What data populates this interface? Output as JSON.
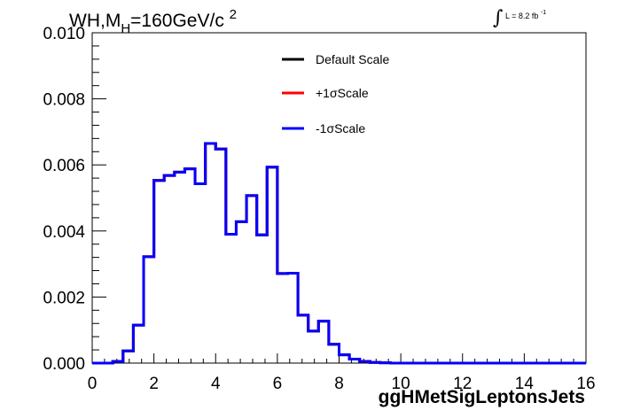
{
  "header": {
    "title_main": "WH,M",
    "title_sub": "H",
    "title_rest": "=160GeV/c",
    "title_sup": "2",
    "lumi_symbol": "∫",
    "lumi_text": "L = 8.2 fb",
    "lumi_sup": "-1"
  },
  "chart_data": {
    "type": "line",
    "xlabel": "ggHMetSigLeptonsJets",
    "ylabel": "",
    "xlim": [
      0,
      16
    ],
    "ylim": [
      0,
      0.01
    ],
    "x_ticks": [
      0,
      2,
      4,
      6,
      8,
      10,
      12,
      14,
      16
    ],
    "x_tick_labels": [
      "0",
      "2",
      "4",
      "6",
      "8",
      "10",
      "12",
      "14",
      "16"
    ],
    "y_ticks": [
      0.0,
      0.002,
      0.004,
      0.006,
      0.008,
      0.01
    ],
    "y_tick_labels": [
      "0.000",
      "0.002",
      "0.004",
      "0.006",
      "0.008",
      "0.010"
    ],
    "grid": false,
    "legend_position": "top-center",
    "bin_edges": [
      0,
      0.3333,
      0.6667,
      1.0,
      1.3333,
      1.6667,
      2.0,
      2.3333,
      2.6667,
      3.0,
      3.3333,
      3.6667,
      4.0,
      4.3333,
      4.6667,
      5.0,
      5.3333,
      5.6667,
      6.0,
      6.3333,
      6.6667,
      7.0,
      7.3333,
      7.6667,
      8.0,
      8.3333,
      8.6667,
      9.0,
      9.3333,
      9.6667,
      10.0,
      10.3333,
      10.6667,
      11.0,
      11.3333,
      11.6667,
      12.0,
      12.3333,
      12.6667,
      13.0,
      13.3333,
      13.6667,
      14.0,
      14.3333,
      14.6667,
      15.0,
      15.3333,
      15.6667,
      16.0
    ],
    "series": [
      {
        "name": "Default Scale",
        "color": "#000000",
        "values": [
          0.0,
          0.0,
          5e-05,
          0.00037,
          0.00115,
          0.00322,
          0.00553,
          0.00568,
          0.00578,
          0.00588,
          0.00543,
          0.00665,
          0.00648,
          0.0039,
          0.00428,
          0.00507,
          0.00388,
          0.00593,
          0.00271,
          0.00272,
          0.00145,
          0.00097,
          0.00127,
          0.00057,
          0.00025,
          0.00012,
          5e-05,
          2e-05,
          1e-05,
          0.0,
          0.0,
          0.0,
          0.0,
          0.0,
          0.0,
          0.0,
          0.0,
          0.0,
          0.0,
          0.0,
          0.0,
          0.0,
          0.0,
          0.0,
          0.0,
          0.0,
          0.0,
          0.0
        ]
      },
      {
        "name": "+1σScale",
        "color": "#ff0000",
        "values": [
          0.0,
          0.0,
          5e-05,
          0.00037,
          0.00115,
          0.00322,
          0.00553,
          0.00568,
          0.00578,
          0.00588,
          0.00543,
          0.00665,
          0.00648,
          0.0039,
          0.00428,
          0.00507,
          0.00388,
          0.00593,
          0.00271,
          0.00272,
          0.00145,
          0.00097,
          0.00127,
          0.00057,
          0.00025,
          0.00012,
          5e-05,
          2e-05,
          1e-05,
          0.0,
          0.0,
          0.0,
          0.0,
          0.0,
          0.0,
          0.0,
          0.0,
          0.0,
          0.0,
          0.0,
          0.0,
          0.0,
          0.0,
          0.0,
          0.0,
          0.0,
          0.0,
          0.0
        ]
      },
      {
        "name": "-1σScale",
        "color": "#0000ff",
        "values": [
          0.0,
          0.0,
          5e-05,
          0.00037,
          0.00115,
          0.00322,
          0.00553,
          0.00568,
          0.00578,
          0.00588,
          0.00543,
          0.00665,
          0.00648,
          0.0039,
          0.00428,
          0.00507,
          0.00388,
          0.00593,
          0.00271,
          0.00272,
          0.00145,
          0.00097,
          0.00127,
          0.00057,
          0.00025,
          0.00012,
          5e-05,
          2e-05,
          1e-05,
          0.0,
          0.0,
          0.0,
          0.0,
          0.0,
          0.0,
          0.0,
          0.0,
          0.0,
          0.0,
          0.0,
          0.0,
          0.0,
          0.0,
          0.0,
          0.0,
          0.0,
          0.0,
          0.0
        ]
      }
    ]
  }
}
